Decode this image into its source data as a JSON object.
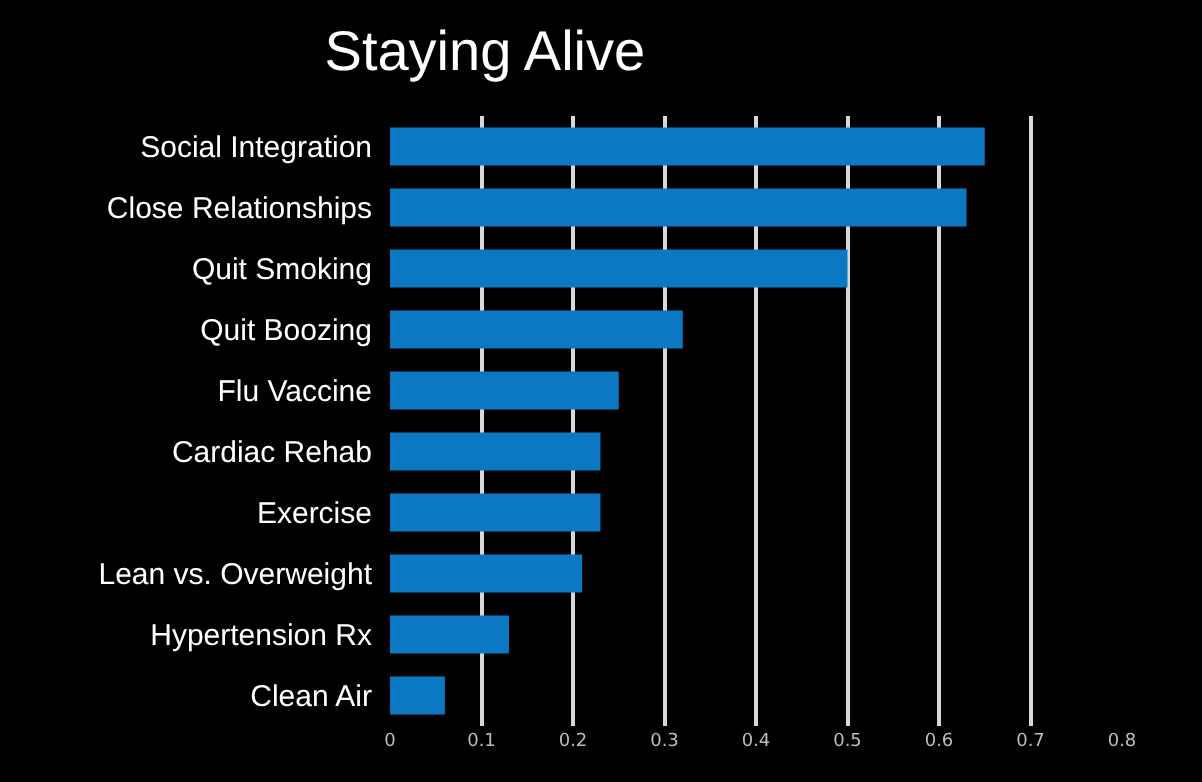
{
  "chart_data": {
    "type": "bar",
    "orientation": "horizontal",
    "title": "Staying Alive",
    "categories": [
      "Social Integration",
      "Close Relationships",
      "Quit Smoking",
      "Quit Boozing",
      "Flu Vaccine",
      "Cardiac Rehab",
      "Exercise",
      "Lean vs. Overweight",
      "Hypertension Rx",
      "Clean Air"
    ],
    "values": [
      0.65,
      0.63,
      0.5,
      0.32,
      0.25,
      0.23,
      0.23,
      0.21,
      0.13,
      0.06
    ],
    "color": "#0a78c2",
    "xlim": [
      0,
      0.8
    ],
    "xticks": [
      0,
      0.1,
      0.2,
      0.3,
      0.4,
      0.5,
      0.6,
      0.7,
      0.8
    ],
    "grid": "x"
  }
}
